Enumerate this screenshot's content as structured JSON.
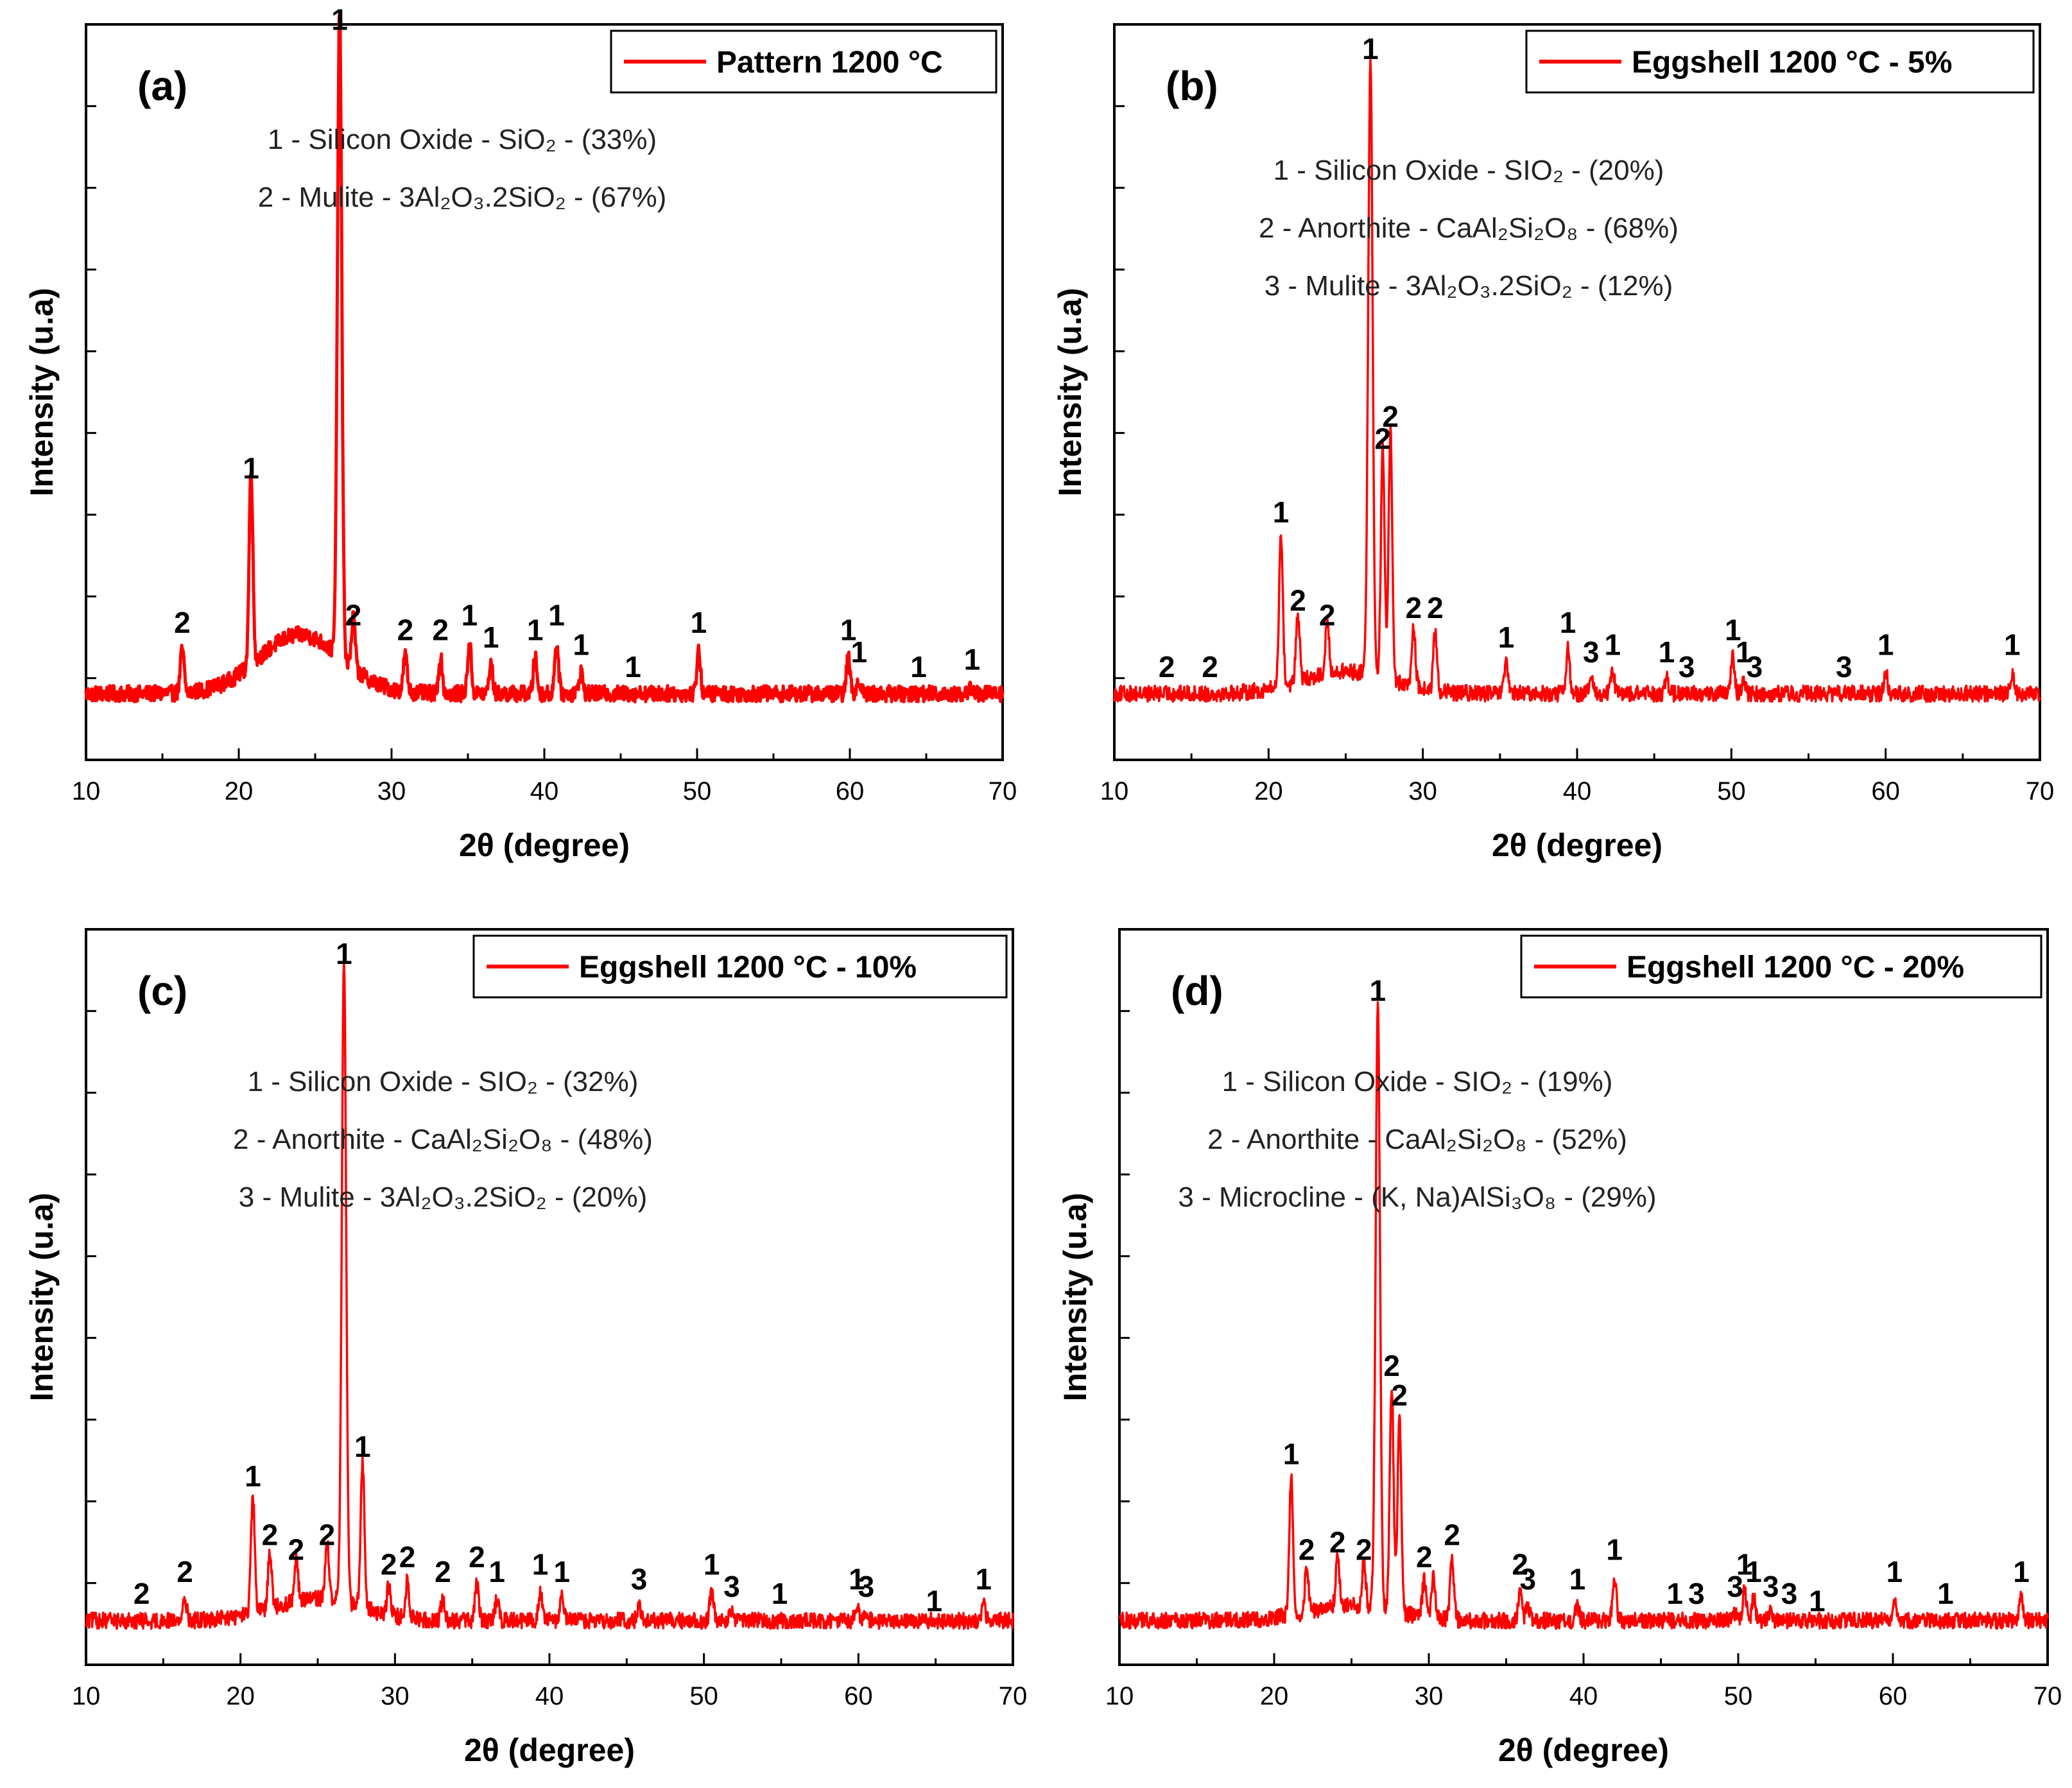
{
  "figure": {
    "xlabel": "2θ (degree)",
    "ylabel": "Intensity (u.a)",
    "color": "#ff0000",
    "axis_color": "#000000"
  },
  "chart_data": [
    {
      "type": "line",
      "panel": "(a)",
      "legend": "Pattern 1200 °C",
      "legend_placement": "top-right",
      "xlim": [
        10,
        70
      ],
      "xticks": [
        "10",
        "20",
        "30",
        "40",
        "50",
        "60",
        "70"
      ],
      "ylim": [
        0,
        1
      ],
      "xlabel": "2θ (degree)",
      "ylabel": "Intensity (u.a)",
      "baseline": 0.09,
      "hump": {
        "center": 24,
        "width": 3.8,
        "height": 0.08
      },
      "peaks": [
        {
          "x": 16.3,
          "y": 0.15,
          "label": "2"
        },
        {
          "x": 20.8,
          "y": 0.36,
          "label": "1"
        },
        {
          "x": 26.6,
          "y": 0.97,
          "label": "1"
        },
        {
          "x": 27.5,
          "y": 0.16,
          "label": "2"
        },
        {
          "x": 30.9,
          "y": 0.14,
          "label": "2"
        },
        {
          "x": 33.2,
          "y": 0.14,
          "label": "2"
        },
        {
          "x": 35.1,
          "y": 0.16,
          "label": "1"
        },
        {
          "x": 36.5,
          "y": 0.13,
          "label": "1"
        },
        {
          "x": 39.4,
          "y": 0.14,
          "label": "1"
        },
        {
          "x": 40.8,
          "y": 0.16,
          "label": "1"
        },
        {
          "x": 42.4,
          "y": 0.12,
          "label": "1"
        },
        {
          "x": 45.8,
          "y": 0.09,
          "label": "1"
        },
        {
          "x": 50.1,
          "y": 0.15,
          "label": "1"
        },
        {
          "x": 59.9,
          "y": 0.14,
          "label": "1"
        },
        {
          "x": 60.6,
          "y": 0.11,
          "label": "1"
        },
        {
          "x": 64.5,
          "y": 0.09,
          "label": "1"
        },
        {
          "x": 68.0,
          "y": 0.1,
          "label": "1"
        }
      ],
      "phases": [
        {
          "num": "1",
          "name": "Silicon Oxide",
          "formula": "SiO₂",
          "pct": "(33%)"
        },
        {
          "num": "2",
          "name": "Mulite",
          "formula": "3Al₂O₃.2SiO₂",
          "pct": "(67%)"
        }
      ]
    },
    {
      "type": "line",
      "panel": "(b)",
      "legend": "Eggshell 1200 °C - 5%",
      "legend_placement": "top-right",
      "xlim": [
        10,
        70
      ],
      "xticks": [
        "10",
        "20",
        "30",
        "40",
        "50",
        "60",
        "70"
      ],
      "ylim": [
        0,
        1
      ],
      "xlabel": "2θ (degree)",
      "ylabel": "Intensity (u.a)",
      "baseline": 0.09,
      "hump": {
        "center": 25,
        "width": 4,
        "height": 0.03
      },
      "peaks": [
        {
          "x": 13.4,
          "y": 0.09,
          "label": "2"
        },
        {
          "x": 16.2,
          "y": 0.09,
          "label": "2"
        },
        {
          "x": 20.8,
          "y": 0.3,
          "label": "1"
        },
        {
          "x": 21.9,
          "y": 0.18,
          "label": "2"
        },
        {
          "x": 23.8,
          "y": 0.16,
          "label": "2"
        },
        {
          "x": 26.6,
          "y": 0.93,
          "label": "1"
        },
        {
          "x": 27.4,
          "y": 0.4,
          "label": "2"
        },
        {
          "x": 27.9,
          "y": 0.43,
          "label": "2"
        },
        {
          "x": 29.4,
          "y": 0.17,
          "label": "2"
        },
        {
          "x": 30.8,
          "y": 0.17,
          "label": "2"
        },
        {
          "x": 35.4,
          "y": 0.13,
          "label": "1"
        },
        {
          "x": 39.4,
          "y": 0.15,
          "label": "1"
        },
        {
          "x": 40.9,
          "y": 0.11,
          "label": "3"
        },
        {
          "x": 42.3,
          "y": 0.12,
          "label": "1"
        },
        {
          "x": 45.8,
          "y": 0.11,
          "label": "1"
        },
        {
          "x": 47.1,
          "y": 0.09,
          "label": "3"
        },
        {
          "x": 50.1,
          "y": 0.14,
          "label": "1"
        },
        {
          "x": 50.8,
          "y": 0.11,
          "label": "1"
        },
        {
          "x": 51.5,
          "y": 0.09,
          "label": "3"
        },
        {
          "x": 57.3,
          "y": 0.09,
          "label": "3"
        },
        {
          "x": 60.0,
          "y": 0.12,
          "label": "1"
        },
        {
          "x": 68.2,
          "y": 0.12,
          "label": "1"
        }
      ],
      "phases": [
        {
          "num": "1",
          "name": "Silicon Oxide",
          "formula": "SIO₂",
          "pct": "(20%)"
        },
        {
          "num": "2",
          "name": "Anorthite",
          "formula": "CaAl₂Si₂O₈",
          "pct": "(68%)"
        },
        {
          "num": "3",
          "name": "Mulite",
          "formula": "3Al₂O₃.2SiO₂",
          "pct": "(12%)"
        }
      ]
    },
    {
      "type": "line",
      "panel": "(c)",
      "legend": "Eggshell 1200 °C - 10%",
      "legend_placement": "top-right",
      "xlim": [
        10,
        70
      ],
      "xticks": [
        "10",
        "20",
        "30",
        "40",
        "50",
        "60",
        "70"
      ],
      "ylim": [
        0,
        1
      ],
      "xlabel": "2θ (degree)",
      "ylabel": "Intensity (u.a)",
      "baseline": 0.06,
      "hump": {
        "center": 25,
        "width": 4,
        "height": 0.03
      },
      "peaks": [
        {
          "x": 13.6,
          "y": 0.06,
          "label": "2"
        },
        {
          "x": 16.4,
          "y": 0.09,
          "label": "2"
        },
        {
          "x": 20.8,
          "y": 0.22,
          "label": "1"
        },
        {
          "x": 21.9,
          "y": 0.14,
          "label": "2"
        },
        {
          "x": 23.6,
          "y": 0.12,
          "label": "2"
        },
        {
          "x": 25.6,
          "y": 0.14,
          "label": "2"
        },
        {
          "x": 26.7,
          "y": 0.93,
          "label": "1"
        },
        {
          "x": 27.9,
          "y": 0.26,
          "label": "1"
        },
        {
          "x": 29.6,
          "y": 0.1,
          "label": "2"
        },
        {
          "x": 30.8,
          "y": 0.11,
          "label": "2"
        },
        {
          "x": 33.1,
          "y": 0.09,
          "label": "2"
        },
        {
          "x": 35.3,
          "y": 0.11,
          "label": "2"
        },
        {
          "x": 36.6,
          "y": 0.09,
          "label": "1"
        },
        {
          "x": 39.4,
          "y": 0.1,
          "label": "1"
        },
        {
          "x": 40.8,
          "y": 0.09,
          "label": "1"
        },
        {
          "x": 45.8,
          "y": 0.08,
          "label": "3"
        },
        {
          "x": 50.5,
          "y": 0.1,
          "label": "1"
        },
        {
          "x": 51.8,
          "y": 0.07,
          "label": "3"
        },
        {
          "x": 54.9,
          "y": 0.06,
          "label": "1"
        },
        {
          "x": 59.9,
          "y": 0.08,
          "label": "1"
        },
        {
          "x": 60.5,
          "y": 0.07,
          "label": "3"
        },
        {
          "x": 64.9,
          "y": 0.05,
          "label": "1"
        },
        {
          "x": 68.1,
          "y": 0.08,
          "label": "1"
        }
      ],
      "phases": [
        {
          "num": "1",
          "name": "Silicon Oxide",
          "formula": "SIO₂",
          "pct": "(32%)"
        },
        {
          "num": "2",
          "name": "Anorthite",
          "formula": "CaAl₂Si₂O₈",
          "pct": "(48%)"
        },
        {
          "num": "3",
          "name": "Mulite",
          "formula": "3Al₂O₃.2SiO₂",
          "pct": "(20%)"
        }
      ]
    },
    {
      "type": "line",
      "panel": "(d)",
      "legend": "Eggshell 1200 °C - 20%",
      "legend_placement": "top-right",
      "xlim": [
        10,
        70
      ],
      "xticks": [
        "10",
        "20",
        "30",
        "40",
        "50",
        "60",
        "70"
      ],
      "ylim": [
        0,
        1
      ],
      "xlabel": "2θ (degree)",
      "ylabel": "Intensity (u.a)",
      "baseline": 0.06,
      "hump": {
        "center": 25,
        "width": 4,
        "height": 0.02
      },
      "peaks": [
        {
          "x": 13.9,
          "y": 0.06,
          "label": ""
        },
        {
          "x": 21.1,
          "y": 0.25,
          "label": "1"
        },
        {
          "x": 22.1,
          "y": 0.12,
          "label": "2"
        },
        {
          "x": 24.1,
          "y": 0.13,
          "label": "2"
        },
        {
          "x": 25.8,
          "y": 0.12,
          "label": "2"
        },
        {
          "x": 26.7,
          "y": 0.88,
          "label": "1"
        },
        {
          "x": 27.6,
          "y": 0.37,
          "label": "2"
        },
        {
          "x": 28.1,
          "y": 0.33,
          "label": "2"
        },
        {
          "x": 29.7,
          "y": 0.11,
          "label": "2"
        },
        {
          "x": 30.3,
          "y": 0.12,
          "label": ""
        },
        {
          "x": 31.5,
          "y": 0.14,
          "label": "2"
        },
        {
          "x": 35.9,
          "y": 0.1,
          "label": "2"
        },
        {
          "x": 36.4,
          "y": 0.08,
          "label": "3"
        },
        {
          "x": 39.6,
          "y": 0.08,
          "label": "1"
        },
        {
          "x": 42.0,
          "y": 0.12,
          "label": "1"
        },
        {
          "x": 45.9,
          "y": 0.06,
          "label": "1"
        },
        {
          "x": 47.3,
          "y": 0.06,
          "label": "3"
        },
        {
          "x": 49.8,
          "y": 0.07,
          "label": "3"
        },
        {
          "x": 50.4,
          "y": 0.1,
          "label": "1"
        },
        {
          "x": 51.0,
          "y": 0.09,
          "label": "1"
        },
        {
          "x": 52.1,
          "y": 0.07,
          "label": "3"
        },
        {
          "x": 53.3,
          "y": 0.06,
          "label": "3"
        },
        {
          "x": 55.1,
          "y": 0.05,
          "label": "1"
        },
        {
          "x": 60.1,
          "y": 0.09,
          "label": "1"
        },
        {
          "x": 63.4,
          "y": 0.06,
          "label": "1"
        },
        {
          "x": 68.3,
          "y": 0.09,
          "label": "1"
        }
      ],
      "phases": [
        {
          "num": "1",
          "name": "Silicon Oxide",
          "formula": "SIO₂",
          "pct": "(19%)"
        },
        {
          "num": "2",
          "name": "Anorthite",
          "formula": "CaAl₂Si₂O₈",
          "pct": "(52%)"
        },
        {
          "num": "3",
          "name": "Microcline",
          "formula": "(K, Na)AlSi₃O₈",
          "pct": "(29%)"
        }
      ]
    }
  ]
}
